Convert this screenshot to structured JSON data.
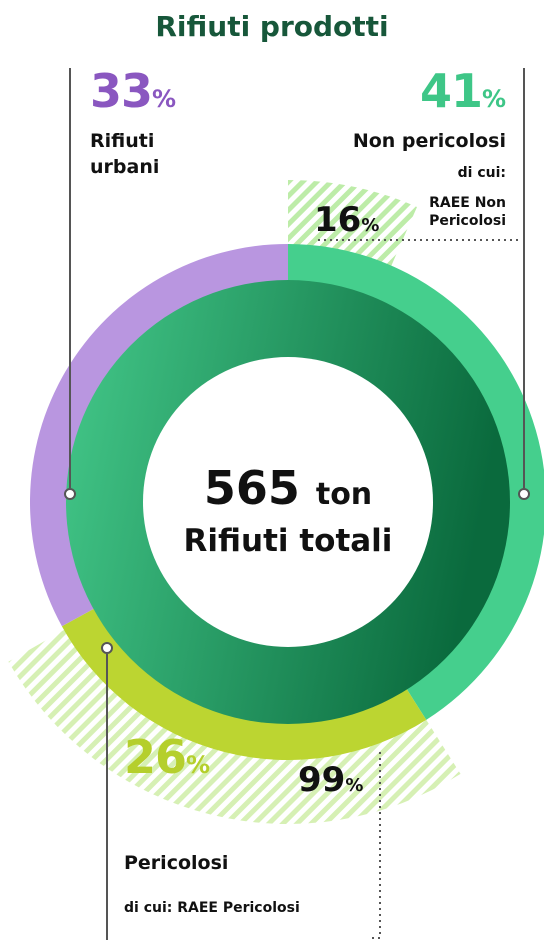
{
  "chart_data": {
    "type": "donut",
    "title": "Rifiuti prodotti",
    "unit": "%",
    "categories": [
      "Non pericolosi",
      "Pericolosi",
      "Rifiuti urbani"
    ],
    "values": [
      41,
      26,
      33
    ],
    "colors": [
      "#45cf8d",
      "#bcd531",
      "#b996e0"
    ],
    "label_colors": [
      "#3ec687",
      "#b5cf2c",
      "#8a57c0"
    ],
    "subsets": [
      {
        "parent": 0,
        "prefix": "di cui:",
        "name": "RAEE Non Pericolosi",
        "value": 16,
        "color": "#bdeca8"
      },
      {
        "parent": 1,
        "prefix": "di cui:",
        "name": "RAEE Pericolosi",
        "value": 99,
        "color": "#d6f0b4"
      }
    ],
    "total": {
      "value": 565,
      "unit": "ton",
      "label": "Rifiuti totali"
    }
  }
}
